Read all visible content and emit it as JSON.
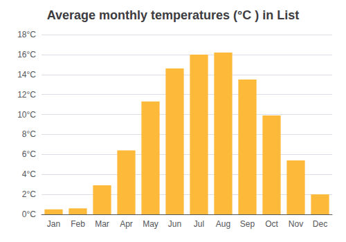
{
  "chart_data": {
    "type": "bar",
    "title": "Average monthly temperatures (°C ) in List",
    "categories": [
      "Jan",
      "Feb",
      "Mar",
      "Apr",
      "May",
      "Jun",
      "Jul",
      "Aug",
      "Sep",
      "Oct",
      "Nov",
      "Dec"
    ],
    "values": [
      0.5,
      0.6,
      2.9,
      6.4,
      11.3,
      14.6,
      16.0,
      16.2,
      13.5,
      9.9,
      5.4,
      2.0
    ],
    "color": "#FDB93A",
    "ylim": [
      0,
      18
    ],
    "yticks": [
      {
        "value": 0,
        "label": "0°C"
      },
      {
        "value": 2,
        "label": "2°C"
      },
      {
        "value": 4,
        "label": "4°C"
      },
      {
        "value": 6,
        "label": "6°C"
      },
      {
        "value": 8,
        "label": "8°C"
      },
      {
        "value": 10,
        "label": "10°C"
      },
      {
        "value": 12,
        "label": "12°C"
      },
      {
        "value": 14,
        "label": "14°C"
      },
      {
        "value": 16,
        "label": "16°C"
      },
      {
        "value": 18,
        "label": "18°C"
      }
    ],
    "grid": true
  }
}
